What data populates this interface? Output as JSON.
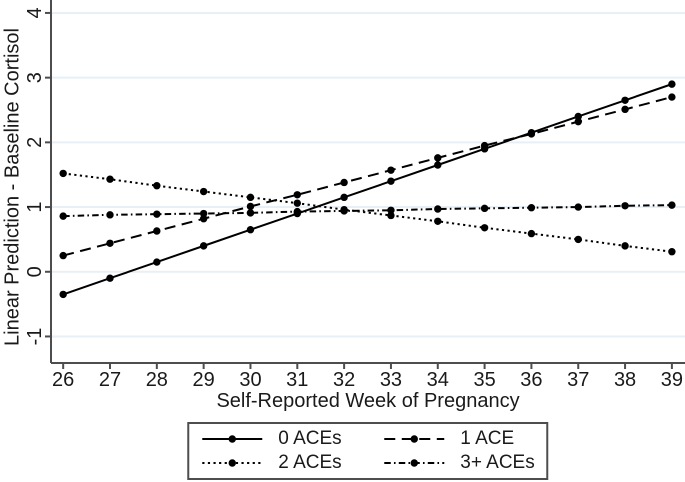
{
  "colors": {
    "background": "#ffffff",
    "axis": "#4d4d4d",
    "grid": "#e8eff5",
    "text": "#1a1a1a",
    "series": "#000000"
  },
  "chart_data": {
    "type": "line",
    "title": "",
    "xlabel": "Self-Reported Week of Pregnancy",
    "ylabel": "Linear Prediction - Baseline Cortisol",
    "x": [
      26,
      27,
      28,
      29,
      30,
      31,
      32,
      33,
      34,
      35,
      36,
      37,
      38,
      39
    ],
    "x_tick_labels": [
      "26",
      "27",
      "28",
      "29",
      "30",
      "31",
      "32",
      "33",
      "34",
      "35",
      "36",
      "37",
      "38",
      "39"
    ],
    "yticks": [
      -1,
      0,
      1,
      2,
      3,
      4
    ],
    "ytick_labels": [
      "-1",
      "0",
      "1",
      "2",
      "3",
      "4"
    ],
    "xlim": [
      25.74,
      39.28
    ],
    "ylim": [
      -1.41,
      4.2
    ],
    "grid": "horizontal-gridlines-on",
    "legend_position": "bottom-center",
    "ytick_label_angle": 90,
    "series": [
      {
        "name": "0 ACEs",
        "line_style": "solid",
        "marker": "filled-circle",
        "values": [
          -0.35,
          -0.1,
          0.15,
          0.4,
          0.65,
          0.9,
          1.15,
          1.4,
          1.65,
          1.9,
          2.15,
          2.4,
          2.65,
          2.9
        ]
      },
      {
        "name": "1 ACE",
        "line_style": "long-dash",
        "marker": "filled-circle",
        "values": [
          0.25,
          0.44,
          0.63,
          0.82,
          1.01,
          1.19,
          1.38,
          1.57,
          1.76,
          1.95,
          2.13,
          2.32,
          2.51,
          2.7
        ]
      },
      {
        "name": "2 ACEs",
        "line_style": "dot",
        "marker": "filled-circle",
        "values": [
          1.52,
          1.43,
          1.33,
          1.24,
          1.15,
          1.06,
          0.96,
          0.87,
          0.78,
          0.68,
          0.59,
          0.5,
          0.4,
          0.31
        ]
      },
      {
        "name": "3+ ACEs",
        "line_style": "dash-dot",
        "marker": "filled-circle",
        "values": [
          0.86,
          0.88,
          0.89,
          0.9,
          0.91,
          0.93,
          0.94,
          0.95,
          0.97,
          0.98,
          0.99,
          1.0,
          1.02,
          1.03
        ]
      }
    ]
  }
}
